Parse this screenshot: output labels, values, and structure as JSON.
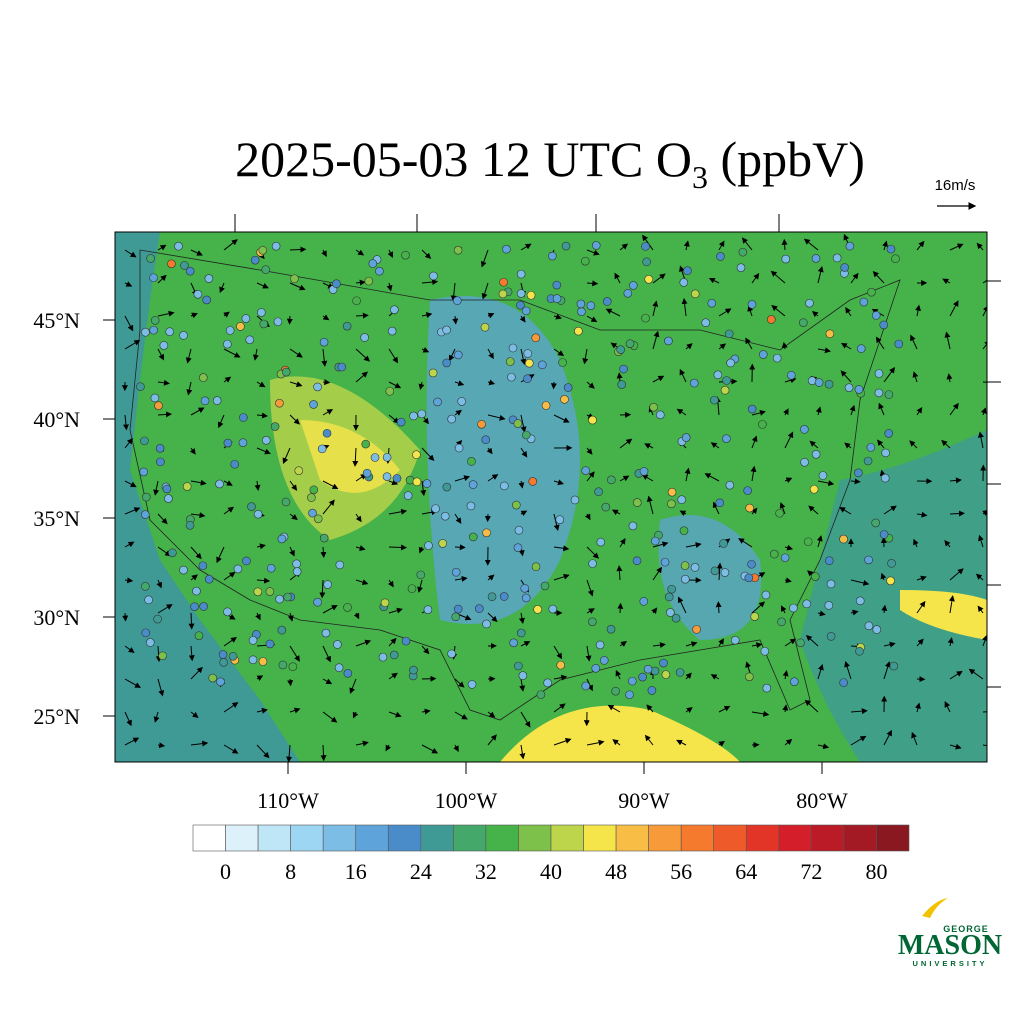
{
  "header": {
    "title": "2025-05-03 12 UTC O",
    "title_subscript": "3",
    "title_suffix": " (ppbV)"
  },
  "wind_key": {
    "label": "16m/s"
  },
  "map": {
    "lat_labels": [
      "45°N",
      "40°N",
      "35°N",
      "30°N",
      "25°N"
    ],
    "lon_labels": [
      "110°W",
      "100°W",
      "90°W",
      "80°W"
    ]
  },
  "colorbar": {
    "labels": [
      "0",
      "8",
      "16",
      "24",
      "32",
      "40",
      "48",
      "56",
      "64",
      "72",
      "80"
    ],
    "colors": [
      "#ffffff",
      "#ddf1fa",
      "#bfe6f7",
      "#9dd6f2",
      "#7cbde6",
      "#5ea3da",
      "#4a8cca",
      "#3f9a96",
      "#44a86a",
      "#45b24a",
      "#7dc14a",
      "#bcd54a",
      "#f6e54a",
      "#f8bd45",
      "#f79a3a",
      "#f57a2e",
      "#ef5a2b",
      "#e23528",
      "#d41f2a",
      "#bb1a27",
      "#a31a24",
      "#8a1820"
    ]
  },
  "logo": {
    "top": "GEORGE",
    "main": "MASON",
    "bottom": "UNIVERSITY"
  }
}
